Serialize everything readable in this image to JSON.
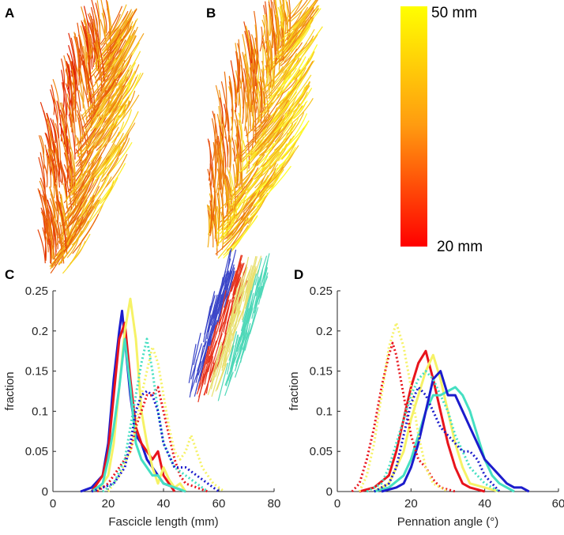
{
  "panel_labels": [
    "A",
    "B",
    "C",
    "D"
  ],
  "colorbar": {
    "top_label": "50 mm",
    "bottom_label": "20 mm"
  },
  "chart_data": [
    {
      "type": "line",
      "xlabel": "Fascicle length (mm)",
      "ylabel": "fraction",
      "xlim": [
        0,
        80
      ],
      "xticks": [
        0,
        20,
        40,
        60,
        80
      ],
      "ylim": [
        0,
        0.25
      ],
      "yticks": [
        0,
        0.05,
        0.1,
        0.15,
        0.2,
        0.25
      ],
      "series": [
        {
          "color": "#1c1ccc",
          "style": "solid",
          "x": [
            10,
            14,
            18,
            20,
            22,
            24,
            25,
            26,
            28,
            30,
            32,
            34,
            36,
            38,
            40,
            44,
            48
          ],
          "values": [
            0,
            0.005,
            0.02,
            0.06,
            0.14,
            0.2,
            0.225,
            0.19,
            0.12,
            0.07,
            0.06,
            0.04,
            0.03,
            0.02,
            0.01,
            0.005,
            0
          ]
        },
        {
          "color": "#e8141c",
          "style": "solid",
          "x": [
            14,
            18,
            20,
            22,
            24,
            26,
            28,
            30,
            32,
            34,
            36,
            38,
            40,
            42,
            44
          ],
          "values": [
            0,
            0.02,
            0.05,
            0.12,
            0.19,
            0.21,
            0.14,
            0.08,
            0.06,
            0.05,
            0.04,
            0.05,
            0.02,
            0.01,
            0
          ]
        },
        {
          "color": "#f6f266",
          "style": "solid",
          "x": [
            16,
            20,
            22,
            24,
            26,
            28,
            30,
            32,
            34,
            36,
            38,
            40,
            42,
            44,
            46,
            48
          ],
          "values": [
            0,
            0.02,
            0.06,
            0.13,
            0.2,
            0.24,
            0.19,
            0.1,
            0.06,
            0.03,
            0.01,
            0.03,
            0.015,
            0.005,
            0.01,
            0
          ]
        },
        {
          "color": "#45dfc2",
          "style": "solid",
          "x": [
            14,
            18,
            20,
            22,
            24,
            26,
            28,
            30,
            32,
            34,
            36,
            38,
            40,
            44,
            48
          ],
          "values": [
            0,
            0.01,
            0.04,
            0.08,
            0.13,
            0.19,
            0.13,
            0.06,
            0.04,
            0.03,
            0.02,
            0.02,
            0.01,
            0.005,
            0
          ]
        },
        {
          "color": "#e8141c",
          "style": "dotted",
          "x": [
            16,
            20,
            24,
            28,
            30,
            32,
            34,
            36,
            38,
            40,
            42,
            44,
            46,
            48,
            52,
            56
          ],
          "values": [
            0,
            0.01,
            0.03,
            0.05,
            0.08,
            0.1,
            0.12,
            0.12,
            0.13,
            0.1,
            0.07,
            0.04,
            0.02,
            0.01,
            0.005,
            0
          ]
        },
        {
          "color": "#f6f266",
          "style": "dotted",
          "x": [
            20,
            24,
            28,
            30,
            32,
            34,
            36,
            38,
            40,
            42,
            44,
            46,
            48,
            50,
            52,
            54,
            56,
            58,
            62
          ],
          "values": [
            0,
            0.02,
            0.05,
            0.08,
            0.12,
            0.15,
            0.18,
            0.16,
            0.12,
            0.08,
            0.05,
            0.04,
            0.05,
            0.07,
            0.05,
            0.03,
            0.02,
            0.01,
            0
          ]
        },
        {
          "color": "#45dfc2",
          "style": "dotted",
          "x": [
            18,
            22,
            26,
            28,
            30,
            32,
            34,
            36,
            38,
            40,
            44,
            48,
            52,
            56
          ],
          "values": [
            0,
            0.01,
            0.04,
            0.08,
            0.12,
            0.16,
            0.19,
            0.15,
            0.1,
            0.06,
            0.03,
            0.02,
            0.01,
            0
          ]
        },
        {
          "color": "#1c1ccc",
          "style": "dotted",
          "x": [
            14,
            18,
            22,
            26,
            28,
            30,
            32,
            34,
            36,
            38,
            40,
            44,
            48,
            52,
            56,
            60
          ],
          "values": [
            0,
            0.005,
            0.01,
            0.03,
            0.06,
            0.1,
            0.12,
            0.125,
            0.12,
            0.1,
            0.06,
            0.03,
            0.03,
            0.02,
            0.01,
            0
          ]
        }
      ]
    },
    {
      "type": "line",
      "xlabel": "Pennation angle (°)",
      "ylabel": "fraction",
      "xlim": [
        0,
        60
      ],
      "xticks": [
        0,
        20,
        40,
        60
      ],
      "ylim": [
        0,
        0.25
      ],
      "yticks": [
        0,
        0.05,
        0.1,
        0.15,
        0.2,
        0.25
      ],
      "series": [
        {
          "color": "#e8141c",
          "style": "solid",
          "x": [
            6,
            10,
            14,
            16,
            18,
            20,
            22,
            24,
            26,
            28,
            30,
            32,
            34,
            36,
            40
          ],
          "values": [
            0,
            0.005,
            0.02,
            0.05,
            0.09,
            0.13,
            0.16,
            0.175,
            0.14,
            0.1,
            0.06,
            0.03,
            0.01,
            0.005,
            0
          ]
        },
        {
          "color": "#f6f266",
          "style": "solid",
          "x": [
            10,
            14,
            18,
            20,
            22,
            24,
            26,
            28,
            30,
            32,
            34,
            36,
            40,
            44
          ],
          "values": [
            0,
            0.01,
            0.05,
            0.09,
            0.12,
            0.15,
            0.17,
            0.14,
            0.1,
            0.06,
            0.03,
            0.01,
            0.005,
            0
          ]
        },
        {
          "color": "#45dfc2",
          "style": "solid",
          "x": [
            10,
            14,
            18,
            20,
            22,
            24,
            26,
            28,
            30,
            32,
            34,
            36,
            38,
            40,
            42,
            44,
            48
          ],
          "values": [
            0,
            0.005,
            0.02,
            0.04,
            0.07,
            0.1,
            0.12,
            0.12,
            0.125,
            0.13,
            0.12,
            0.1,
            0.07,
            0.04,
            0.02,
            0.01,
            0
          ]
        },
        {
          "color": "#1c1ccc",
          "style": "solid",
          "x": [
            12,
            16,
            18,
            20,
            22,
            24,
            26,
            28,
            30,
            32,
            34,
            36,
            38,
            40,
            42,
            44,
            46,
            48,
            50,
            52
          ],
          "values": [
            0,
            0.005,
            0.01,
            0.03,
            0.06,
            0.1,
            0.14,
            0.15,
            0.12,
            0.12,
            0.1,
            0.08,
            0.06,
            0.04,
            0.03,
            0.02,
            0.01,
            0.005,
            0.005,
            0
          ]
        },
        {
          "color": "#e8141c",
          "style": "dotted",
          "x": [
            4,
            6,
            8,
            10,
            12,
            14,
            15,
            16,
            18,
            20,
            22,
            24,
            26,
            28,
            32
          ],
          "values": [
            0,
            0.01,
            0.04,
            0.08,
            0.13,
            0.17,
            0.185,
            0.17,
            0.12,
            0.07,
            0.04,
            0.03,
            0.015,
            0.005,
            0
          ]
        },
        {
          "color": "#f6f266",
          "style": "dotted",
          "x": [
            6,
            8,
            10,
            12,
            14,
            16,
            18,
            20,
            22,
            24,
            26,
            28,
            30
          ],
          "values": [
            0,
            0.02,
            0.06,
            0.12,
            0.18,
            0.21,
            0.18,
            0.13,
            0.07,
            0.03,
            0.01,
            0.005,
            0
          ]
        },
        {
          "color": "#45dfc2",
          "style": "dotted",
          "x": [
            8,
            12,
            14,
            16,
            18,
            20,
            22,
            24,
            26,
            28,
            30,
            32,
            34,
            36,
            38,
            40,
            44
          ],
          "values": [
            0,
            0.01,
            0.03,
            0.06,
            0.09,
            0.12,
            0.14,
            0.15,
            0.14,
            0.12,
            0.1,
            0.07,
            0.05,
            0.03,
            0.02,
            0.01,
            0
          ]
        },
        {
          "color": "#1c1ccc",
          "style": "dotted",
          "x": [
            10,
            14,
            16,
            18,
            20,
            22,
            24,
            26,
            28,
            30,
            32,
            34,
            36,
            38,
            40,
            44
          ],
          "values": [
            0,
            0.01,
            0.03,
            0.07,
            0.11,
            0.13,
            0.12,
            0.1,
            0.08,
            0.07,
            0.06,
            0.05,
            0.05,
            0.04,
            0.02,
            0
          ]
        }
      ]
    }
  ]
}
